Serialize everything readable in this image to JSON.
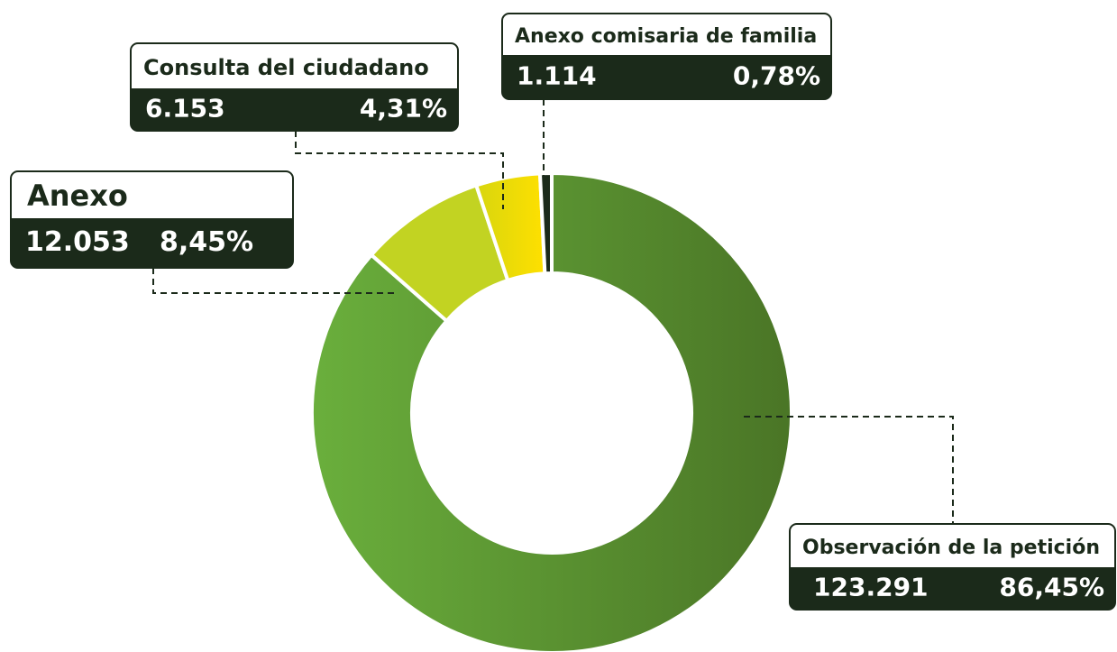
{
  "chart_data": {
    "type": "donut",
    "categories": [
      "Observación de la petición",
      "Anexo",
      "Consulta del ciudadano",
      "Anexo comisaria de familia"
    ],
    "values": [
      123291,
      12053,
      6153,
      1114
    ],
    "value_labels": [
      "123.291",
      "12.053",
      "6.153",
      "1.114"
    ],
    "shares": [
      86.45,
      8.45,
      4.31,
      0.78
    ],
    "share_labels": [
      "86,45%",
      "8,45%",
      "4,31%",
      "0,78%"
    ],
    "colors": [
      "#5a9232",
      "#c2d322",
      "#f0dc00",
      "#1b2a1a"
    ]
  }
}
